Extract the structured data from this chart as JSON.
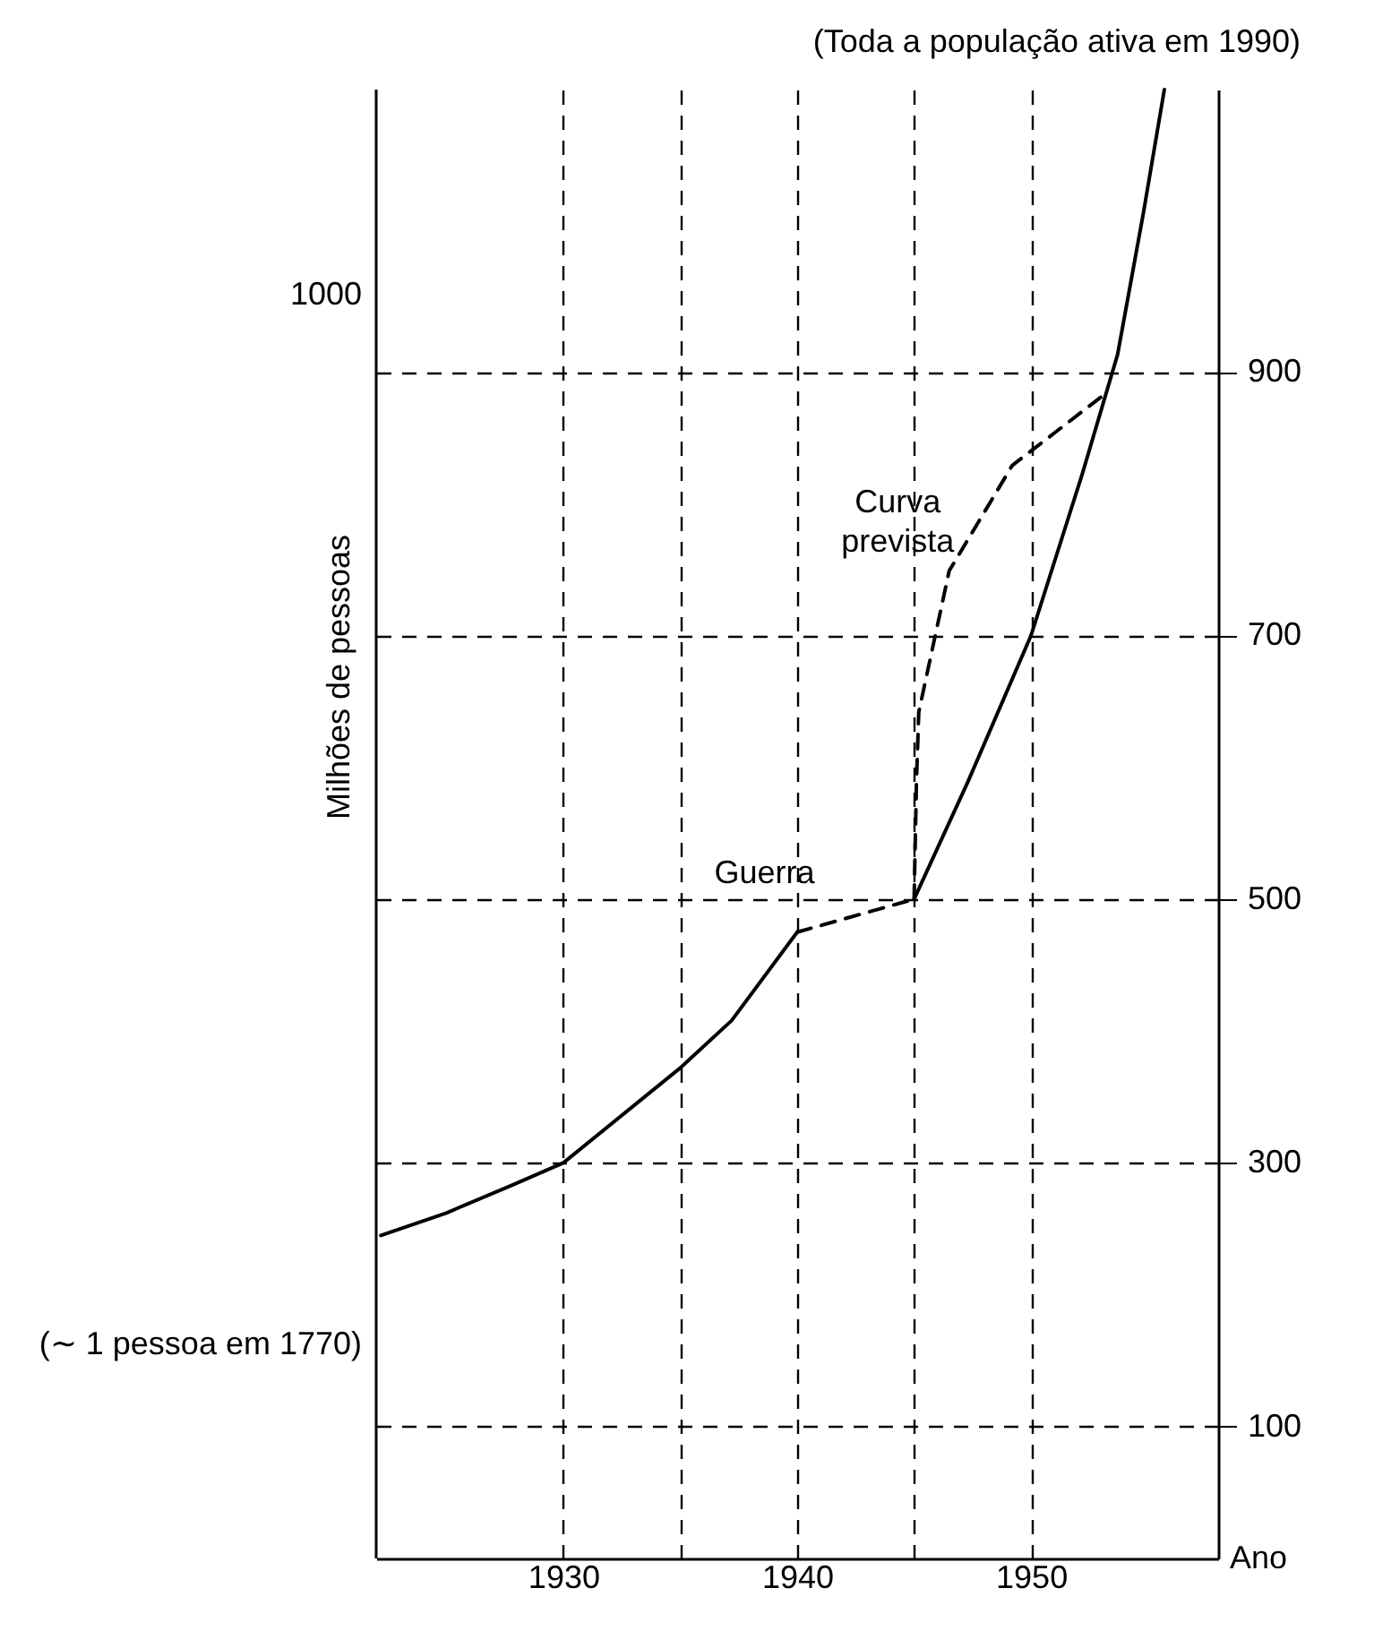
{
  "chart_data": {
    "type": "line",
    "xlabel": "Ano",
    "ylabel": "Milhões de pessoas",
    "xlim": [
      1922,
      1958
    ],
    "xticks": [
      1930,
      {
        "value": 1935,
        "label": null
      },
      1940,
      {
        "value": 1945,
        "label": null
      },
      1950
    ],
    "ylim": [
      0,
      1114
    ],
    "yticks": [
      100,
      300,
      500,
      700,
      900
    ],
    "grid": true,
    "series": [
      {
        "color": "#000000",
        "line_style": "solid",
        "x": [
          1922.2,
          1925,
          1927.8,
          1930,
          1935,
          1937.2,
          1940
        ],
        "values": [
          245,
          262,
          283,
          300,
          372,
          408,
          475
        ]
      },
      {
        "color": "#000000",
        "line_style": "dashed",
        "x": [
          1940,
          1945
        ],
        "values": [
          475,
          500
        ]
      },
      {
        "color": "#000000",
        "line_style": "solid",
        "x": [
          1945,
          1947.3,
          1950,
          1952.2,
          1953.7,
          1954.8,
          1955.7
        ],
        "values": [
          500,
          589,
          700,
          823,
          913,
          1020,
          1114
        ]
      },
      {
        "color": "#000000",
        "line_style": "dashed",
        "x": [
          1945,
          1945.1,
          1945.2,
          1946.5,
          1949.2,
          1953.3
        ],
        "values": [
          500,
          589,
          642,
          749,
          829,
          885
        ]
      }
    ],
    "annotations": [
      "(Toda a população ativa em 1990)",
      "(∼ 1 pessoa em 1770)",
      "1000",
      "Guerra",
      "Curva prevista"
    ]
  }
}
